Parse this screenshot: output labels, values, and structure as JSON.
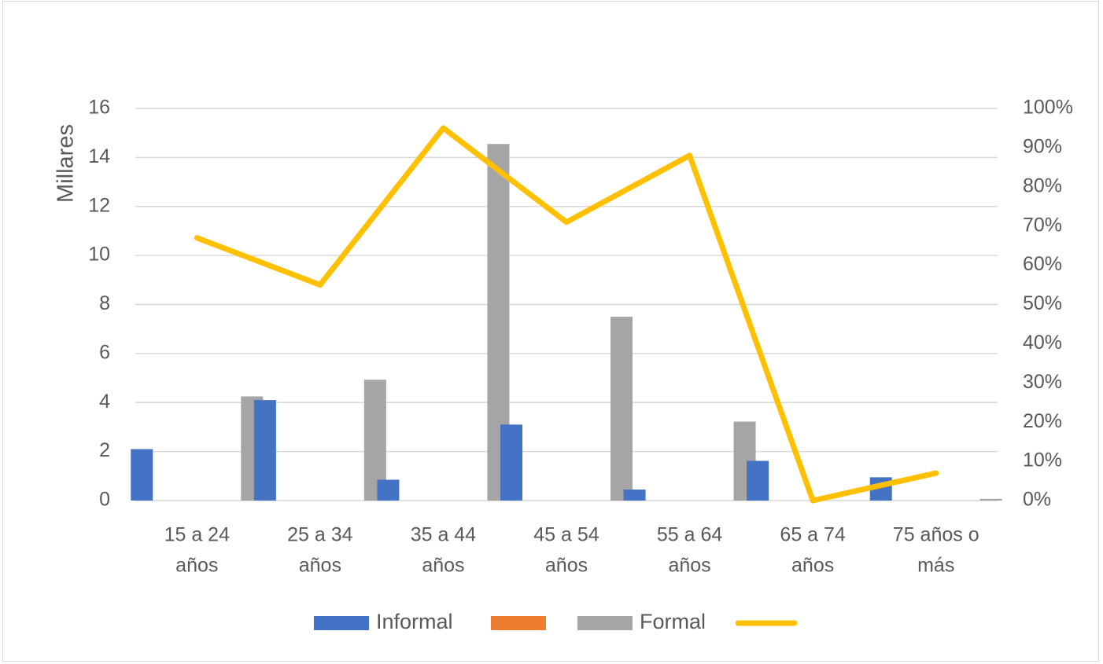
{
  "chart_data": {
    "type": "bar",
    "categories": [
      [
        "15 a 24",
        "años"
      ],
      [
        "25 a 34",
        "años"
      ],
      [
        "35 a 44",
        "años"
      ],
      [
        "45 a 54",
        "años"
      ],
      [
        "55 a 64",
        "años"
      ],
      [
        "65 a 74",
        "años"
      ],
      [
        "75 años o",
        "más"
      ]
    ],
    "ylabel": "Millares",
    "ylim": [
      0,
      16
    ],
    "yticks": [
      "0",
      "2",
      "4",
      "6",
      "8",
      "10",
      "12",
      "14",
      "16"
    ],
    "y2lim": [
      0,
      1
    ],
    "y2ticks": [
      "0%",
      "10%",
      "20%",
      "30%",
      "40%",
      "50%",
      "60%",
      "70%",
      "80%",
      "90%",
      "100%"
    ],
    "grid": true,
    "legend_position": "bottom",
    "series": [
      {
        "name": "Informal",
        "type": "bar",
        "axis": "left",
        "color": "#4472c4",
        "values": [
          2.1,
          4.1,
          0.85,
          3.1,
          0.45,
          1.62,
          0.95
        ]
      },
      {
        "name": "",
        "type": "bar",
        "axis": "left",
        "color": "#ed7d31",
        "values": [
          0,
          0,
          0,
          0,
          0,
          0,
          0
        ]
      },
      {
        "name": "Formal",
        "type": "bar",
        "axis": "left",
        "color": "#a5a5a5",
        "values": [
          4.25,
          4.93,
          14.55,
          7.5,
          3.22,
          0,
          0.07
        ]
      },
      {
        "name": "",
        "type": "line",
        "axis": "right",
        "color": "#ffc000",
        "values": [
          0.67,
          0.55,
          0.95,
          0.71,
          0.88,
          0.0,
          0.07
        ]
      }
    ]
  }
}
